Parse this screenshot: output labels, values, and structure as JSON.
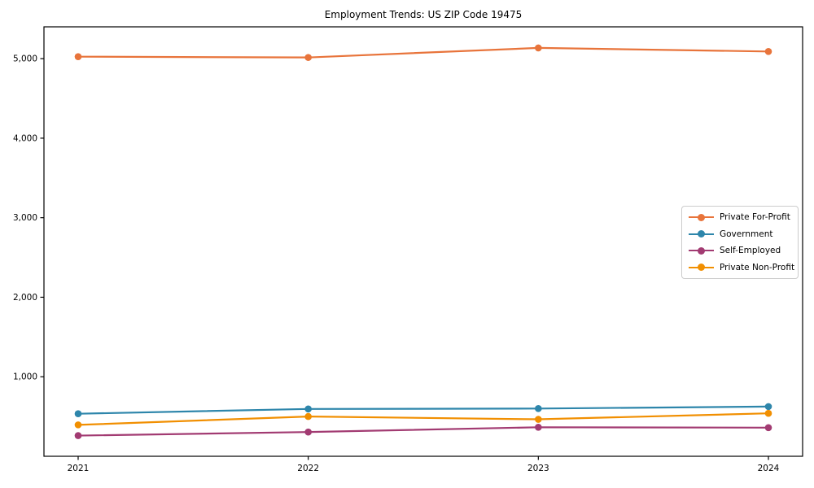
{
  "chart_data": {
    "type": "line",
    "title": "Employment Trends: US ZIP Code 19475",
    "categories": [
      "2021",
      "2022",
      "2023",
      "2024"
    ],
    "series": [
      {
        "name": "Private For-Profit",
        "color": "#E8743B",
        "values": [
          5025,
          5015,
          5135,
          5090
        ]
      },
      {
        "name": "Government",
        "color": "#2E86AB",
        "values": [
          535,
          595,
          600,
          625
        ]
      },
      {
        "name": "Self-Employed",
        "color": "#A23B72",
        "values": [
          260,
          305,
          365,
          360
        ]
      },
      {
        "name": "Private Non-Profit",
        "color": "#F18F01",
        "values": [
          395,
          500,
          465,
          540
        ]
      }
    ],
    "xlabel": "",
    "ylabel": "",
    "ylim": [
      0,
      5400
    ],
    "yticks": [
      1000,
      2000,
      3000,
      4000,
      5000
    ],
    "ytick_labels": [
      "1,000",
      "2,000",
      "3,000",
      "4,000",
      "5,000"
    ],
    "grid": false,
    "legend": {
      "position": "right-center",
      "entries": [
        "Private For-Profit",
        "Government",
        "Self-Employed",
        "Private Non-Profit"
      ]
    },
    "axis_color": "#000000",
    "background_color": "#ffffff"
  }
}
